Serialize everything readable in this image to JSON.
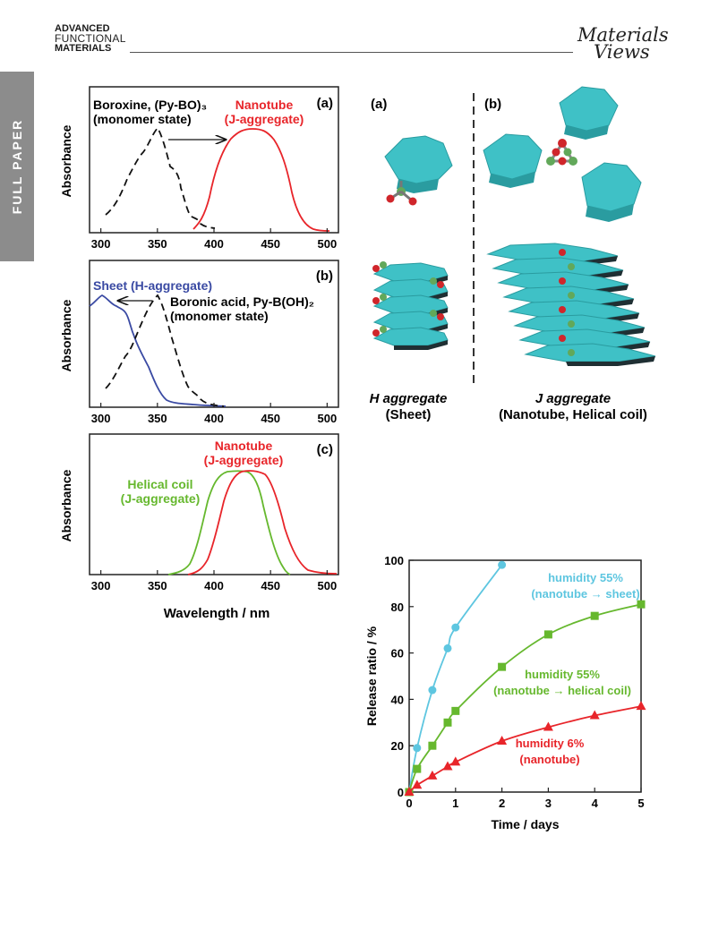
{
  "header": {
    "journal_line1": "ADVANCED",
    "journal_line2": "FUNCTIONAL",
    "journal_line3": "MATERIALS",
    "publisher_line1": "Materials",
    "publisher_line2": "Views",
    "section_tab": "FULL PAPER"
  },
  "colors": {
    "red": "#e8252a",
    "blue": "#3a4aa3",
    "green": "#66b82e",
    "cyan": "#5ec6e0",
    "black": "#111111",
    "tab": "#8c8c8c"
  },
  "spectra": {
    "ylabel": "Absorbance",
    "xlabel": "Wavelength / nm",
    "x_ticks": [
      "300",
      "350",
      "400",
      "450",
      "500"
    ],
    "panel_a": {
      "tag": "(a)",
      "label_boroxine": "Boroxine, (Py-BO)₃",
      "label_boroxine_state": "(monomer state)",
      "label_nanotube": "Nanotube",
      "label_nanotube_agg": "(J-aggregate)"
    },
    "panel_b": {
      "tag": "(b)",
      "label_sheet": "Sheet (H-aggregate)",
      "label_boronic": "Boronic acid, Py-B(OH)₂",
      "label_boronic_state": "(monomer state)"
    },
    "panel_c": {
      "tag": "(c)",
      "label_nanotube": "Nanotube",
      "label_nanotube_agg": "(J-aggregate)",
      "label_helical": "Helical coil",
      "label_helical_agg": "(J-aggregate)"
    }
  },
  "structures": {
    "tag_a": "(a)",
    "tag_b": "(b)",
    "caption_h_line1": "H aggregate",
    "caption_h_line2": "(Sheet)",
    "caption_j_line1": "J aggregate",
    "caption_j_line2": "(Nanotube, Helical coil)"
  },
  "chart_data": {
    "type": "line",
    "xlabel": "Time / days",
    "ylabel": "Release ratio / %",
    "xlim": [
      0,
      5
    ],
    "ylim": [
      0,
      100
    ],
    "x_ticks": [
      0,
      1,
      2,
      3,
      4,
      5
    ],
    "y_ticks": [
      0,
      20,
      40,
      60,
      80,
      100
    ],
    "series": [
      {
        "label_line1": "humidity 55%",
        "label_line2": "(nanotube → sheet)",
        "color": "#5ec6e0",
        "marker": "circle",
        "x": [
          0,
          0.17,
          0.5,
          0.83,
          1.0,
          2.0
        ],
        "y": [
          0,
          19,
          44,
          62,
          71,
          98
        ]
      },
      {
        "label_line1": "humidity 55%",
        "label_line2": "(nanotube → helical coil)",
        "color": "#66b82e",
        "marker": "square",
        "x": [
          0,
          0.17,
          0.5,
          0.83,
          1.0,
          2.0,
          3.0,
          4.0,
          5.0
        ],
        "y": [
          0,
          10,
          20,
          30,
          35,
          54,
          68,
          76,
          81
        ]
      },
      {
        "label_line1": "humidity 6%",
        "label_line2": "(nanotube)",
        "color": "#e8252a",
        "marker": "triangle",
        "x": [
          0,
          0.17,
          0.5,
          0.83,
          1.0,
          2.0,
          3.0,
          4.0,
          5.0
        ],
        "y": [
          0,
          3,
          7,
          11,
          13,
          22,
          28,
          33,
          37
        ]
      }
    ]
  }
}
